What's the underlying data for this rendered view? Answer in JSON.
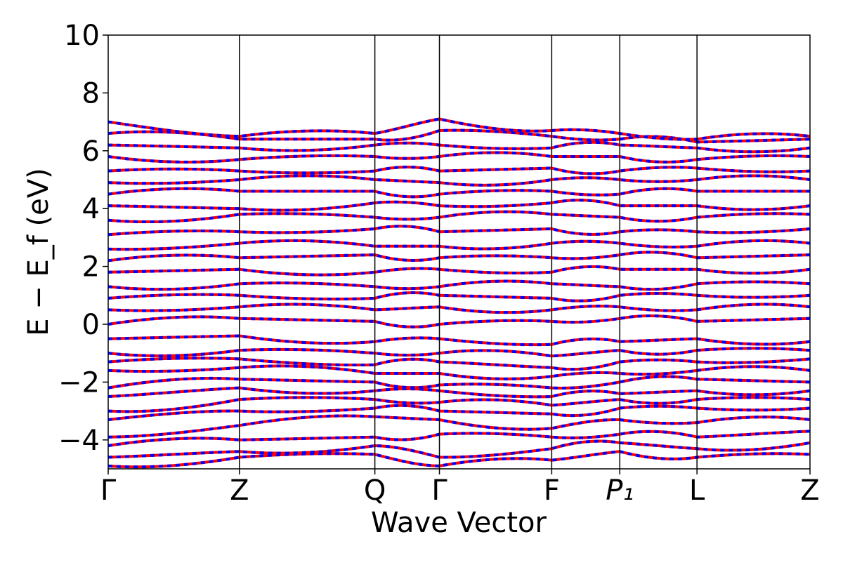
{
  "chart_data": {
    "type": "line",
    "title": "",
    "xlabel": "Wave Vector",
    "ylabel": "E − E_f (eV)",
    "ylim": [
      -5,
      10
    ],
    "yticks": [
      -4,
      -2,
      0,
      2,
      4,
      6,
      8,
      10
    ],
    "ytick_labels": [
      "−4",
      "−2",
      "0",
      "2",
      "4",
      "6",
      "8",
      "10"
    ],
    "high_symmetry_points": [
      {
        "label": "Γ",
        "x": 0.0
      },
      {
        "label": "Z",
        "x": 0.187
      },
      {
        "label": "Q",
        "x": 0.38
      },
      {
        "label": "Γ",
        "x": 0.472
      },
      {
        "label": "F",
        "x": 0.632
      },
      {
        "label": "P₁",
        "x": 0.729
      },
      {
        "label": "L",
        "x": 0.839
      },
      {
        "label": "Z",
        "x": 1.0
      }
    ],
    "grid": false,
    "legend": "none",
    "series_style": [
      {
        "color": "#ff0000",
        "style": "solid"
      },
      {
        "color": "#0000ff",
        "style": "dashed"
      }
    ],
    "band_energies_at_points": [
      [
        -4.9,
        -4.6,
        -4.5,
        -4.9,
        -4.7,
        -4.4,
        -4.6,
        -4.5
      ],
      [
        -4.6,
        -4.4,
        -4.2,
        -4.6,
        -4.3,
        -4.1,
        -4.3,
        -4.1
      ],
      [
        -4.2,
        -4.0,
        -3.9,
        -3.8,
        -3.9,
        -3.8,
        -3.9,
        -3.7
      ],
      [
        -3.9,
        -3.5,
        -3.2,
        -3.3,
        -3.6,
        -3.3,
        -3.4,
        -3.3
      ],
      [
        -3.3,
        -3.0,
        -2.9,
        -3.0,
        -3.1,
        -2.9,
        -2.9,
        -2.9
      ],
      [
        -3.0,
        -2.6,
        -2.6,
        -2.7,
        -2.8,
        -2.6,
        -2.6,
        -2.6
      ],
      [
        -2.5,
        -2.2,
        -2.3,
        -2.3,
        -2.5,
        -2.4,
        -2.3,
        -2.3
      ],
      [
        -2.2,
        -1.9,
        -2.0,
        -2.1,
        -2.2,
        -2.0,
        -1.9,
        -2.0
      ],
      [
        -1.6,
        -1.5,
        -1.7,
        -1.7,
        -1.8,
        -1.7,
        -1.6,
        -1.6
      ],
      [
        -1.3,
        -1.2,
        -1.4,
        -1.3,
        -1.5,
        -1.3,
        -1.3,
        -1.2
      ],
      [
        -1.0,
        -0.9,
        -1.0,
        -1.0,
        -1.1,
        -0.9,
        -0.9,
        -0.9
      ],
      [
        -0.5,
        -0.4,
        -0.6,
        -0.5,
        -0.7,
        -0.6,
        -0.5,
        -0.6
      ],
      [
        0.0,
        0.2,
        0.1,
        0.0,
        0.1,
        0.2,
        0.1,
        0.2
      ],
      [
        0.5,
        0.6,
        0.5,
        0.6,
        0.5,
        0.6,
        0.5,
        0.6
      ],
      [
        0.9,
        1.0,
        0.9,
        1.0,
        0.9,
        1.0,
        1.0,
        1.0
      ],
      [
        1.3,
        1.4,
        1.3,
        1.3,
        1.4,
        1.3,
        1.4,
        1.4
      ],
      [
        1.8,
        1.9,
        1.8,
        1.9,
        1.8,
        1.9,
        1.9,
        1.9
      ],
      [
        2.2,
        2.3,
        2.4,
        2.3,
        2.3,
        2.4,
        2.3,
        2.4
      ],
      [
        2.6,
        2.8,
        2.7,
        2.7,
        2.8,
        2.8,
        2.7,
        2.8
      ],
      [
        3.1,
        3.2,
        3.3,
        3.2,
        3.3,
        3.2,
        3.2,
        3.3
      ],
      [
        3.6,
        3.8,
        3.7,
        3.7,
        3.8,
        3.7,
        3.7,
        3.8
      ],
      [
        4.1,
        4.0,
        4.2,
        4.1,
        4.2,
        4.1,
        4.1,
        4.1
      ],
      [
        4.5,
        4.6,
        4.6,
        4.5,
        4.6,
        4.5,
        4.6,
        4.6
      ],
      [
        4.9,
        5.0,
        5.0,
        4.9,
        5.0,
        5.0,
        5.0,
        5.0
      ],
      [
        5.3,
        5.3,
        5.3,
        5.3,
        5.4,
        5.3,
        5.4,
        5.3
      ],
      [
        5.8,
        5.7,
        5.8,
        5.8,
        5.8,
        5.8,
        5.7,
        5.8
      ],
      [
        6.2,
        6.1,
        6.2,
        6.2,
        6.1,
        6.2,
        6.1,
        6.1
      ],
      [
        6.6,
        6.4,
        6.4,
        6.7,
        6.5,
        6.4,
        6.3,
        6.4
      ],
      [
        7.0,
        6.5,
        6.6,
        7.1,
        6.7,
        6.6,
        6.4,
        6.5
      ]
    ]
  }
}
